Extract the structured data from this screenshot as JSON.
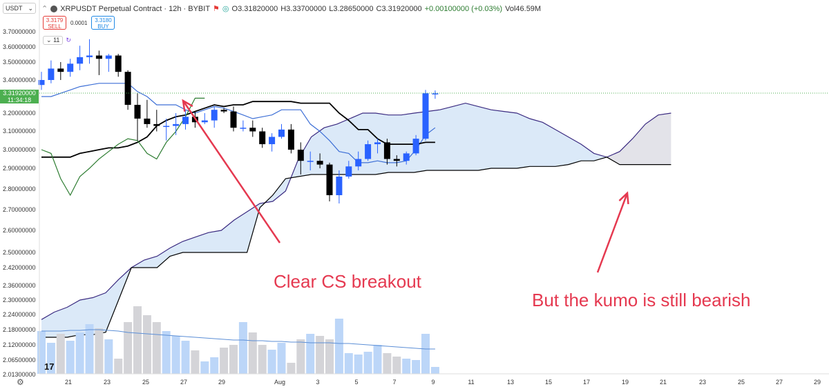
{
  "header": {
    "symbol_box": "USDT",
    "title": "XRPUSDT Perpetual Contract · 12h · BYBIT",
    "open": "O3.31820000",
    "high": "H3.33700000",
    "low": "L3.28650000",
    "close": "C3.31920000",
    "change": "+0.00100000 (+0.03%)",
    "volume": "Vol46.59M"
  },
  "trade": {
    "sell_price": "3.3179",
    "sell_label": "SELL",
    "spread": "0.0001",
    "buy_price": "3.3180",
    "buy_label": "BUY"
  },
  "indicator": {
    "count": "11"
  },
  "price_tag": {
    "price": "3.31920000",
    "countdown": "11:34:18"
  },
  "annotations": {
    "left": "Clear CS breakout",
    "right": "But the kumo is still bearish"
  },
  "colors": {
    "up": "#2962ff",
    "down": "#000000",
    "conversion": "#3d6fd6",
    "base": "#000000",
    "lagging": "#2e7d32",
    "span_a": "#3a2a80",
    "span_b": "#000000",
    "cloud_bull": "#dbe9f8",
    "cloud_bear": "#e3e3e9",
    "annotation": "#e53950",
    "vol_up": "#bcd6f8",
    "vol_down": "#d4d4d8"
  },
  "chart_data": {
    "type": "candlestick",
    "title": "XRPUSDT Perpetual Contract · 12h · BYBIT",
    "y_axis_labels": [
      "3.70000000",
      "3.60000000",
      "3.50000000",
      "3.40000000",
      "3.20000000",
      "3.10000000",
      "3.00000000",
      "2.90000000",
      "2.80000000",
      "2.70000000",
      "2.60000000",
      "2.50000000",
      "2.42000000",
      "2.36000000",
      "2.30000000",
      "2.24000000",
      "2.18000000",
      "2.12000000",
      "2.06500000",
      "2.01300000"
    ],
    "x_axis_labels": [
      "21",
      "23",
      "25",
      "27",
      "29",
      "Aug",
      "3",
      "5",
      "7",
      "9",
      "11",
      "13",
      "15",
      "17",
      "19",
      "21",
      "23",
      "25",
      "27",
      "29"
    ],
    "candles": [
      {
        "o": 3.37,
        "h": 3.45,
        "l": 3.34,
        "c": 3.4
      },
      {
        "o": 3.4,
        "h": 3.52,
        "l": 3.38,
        "c": 3.47
      },
      {
        "o": 3.47,
        "h": 3.51,
        "l": 3.4,
        "c": 3.45
      },
      {
        "o": 3.45,
        "h": 3.53,
        "l": 3.42,
        "c": 3.5
      },
      {
        "o": 3.5,
        "h": 3.61,
        "l": 3.46,
        "c": 3.54
      },
      {
        "o": 3.54,
        "h": 3.65,
        "l": 3.5,
        "c": 3.55
      },
      {
        "o": 3.55,
        "h": 3.58,
        "l": 3.43,
        "c": 3.53
      },
      {
        "o": 3.53,
        "h": 3.56,
        "l": 3.45,
        "c": 3.55
      },
      {
        "o": 3.55,
        "h": 3.56,
        "l": 3.42,
        "c": 3.45
      },
      {
        "o": 3.45,
        "h": 3.46,
        "l": 3.22,
        "c": 3.25
      },
      {
        "o": 3.25,
        "h": 3.32,
        "l": 3.05,
        "c": 3.17
      },
      {
        "o": 3.17,
        "h": 3.28,
        "l": 3.12,
        "c": 3.14
      },
      {
        "o": 3.14,
        "h": 3.22,
        "l": 3.1,
        "c": 3.13
      },
      {
        "o": 3.13,
        "h": 3.17,
        "l": 3.05,
        "c": 3.13
      },
      {
        "o": 3.13,
        "h": 3.2,
        "l": 3.08,
        "c": 3.14
      },
      {
        "o": 3.14,
        "h": 3.22,
        "l": 3.11,
        "c": 3.18
      },
      {
        "o": 3.18,
        "h": 3.21,
        "l": 3.12,
        "c": 3.15
      },
      {
        "o": 3.15,
        "h": 3.2,
        "l": 3.14,
        "c": 3.16
      },
      {
        "o": 3.16,
        "h": 3.24,
        "l": 3.12,
        "c": 3.22
      },
      {
        "o": 3.22,
        "h": 3.23,
        "l": 3.2,
        "c": 3.21
      },
      {
        "o": 3.21,
        "h": 3.24,
        "l": 3.1,
        "c": 3.12
      },
      {
        "o": 3.12,
        "h": 3.16,
        "l": 3.1,
        "c": 3.12
      },
      {
        "o": 3.12,
        "h": 3.16,
        "l": 3.07,
        "c": 3.1
      },
      {
        "o": 3.1,
        "h": 3.12,
        "l": 3.01,
        "c": 3.03
      },
      {
        "o": 3.03,
        "h": 3.09,
        "l": 2.99,
        "c": 3.07
      },
      {
        "o": 3.07,
        "h": 3.14,
        "l": 3.06,
        "c": 3.11
      },
      {
        "o": 3.11,
        "h": 3.14,
        "l": 2.98,
        "c": 3.0
      },
      {
        "o": 3.0,
        "h": 3.04,
        "l": 2.87,
        "c": 2.94
      },
      {
        "o": 2.94,
        "h": 2.99,
        "l": 2.89,
        "c": 2.94
      },
      {
        "o": 2.94,
        "h": 2.98,
        "l": 2.9,
        "c": 2.92
      },
      {
        "o": 2.92,
        "h": 2.93,
        "l": 2.74,
        "c": 2.77
      },
      {
        "o": 2.77,
        "h": 2.89,
        "l": 2.73,
        "c": 2.86
      },
      {
        "o": 2.86,
        "h": 2.94,
        "l": 2.85,
        "c": 2.91
      },
      {
        "o": 2.91,
        "h": 2.99,
        "l": 2.89,
        "c": 2.95
      },
      {
        "o": 2.95,
        "h": 3.05,
        "l": 2.94,
        "c": 3.03
      },
      {
        "o": 3.03,
        "h": 3.06,
        "l": 2.98,
        "c": 3.04
      },
      {
        "o": 3.04,
        "h": 3.06,
        "l": 2.92,
        "c": 2.95
      },
      {
        "o": 2.95,
        "h": 2.97,
        "l": 2.91,
        "c": 2.94
      },
      {
        "o": 2.94,
        "h": 2.99,
        "l": 2.92,
        "c": 2.98
      },
      {
        "o": 2.98,
        "h": 3.08,
        "l": 2.97,
        "c": 3.06
      },
      {
        "o": 3.06,
        "h": 3.34,
        "l": 3.05,
        "c": 3.32
      },
      {
        "o": 3.318,
        "h": 3.337,
        "l": 3.2865,
        "c": 3.3192
      }
    ],
    "volumes": [
      0.62,
      0.45,
      0.58,
      0.48,
      0.6,
      0.72,
      0.66,
      0.5,
      0.22,
      0.75,
      0.98,
      0.85,
      0.75,
      0.62,
      0.55,
      0.48,
      0.34,
      0.18,
      0.24,
      0.38,
      0.42,
      0.75,
      0.6,
      0.42,
      0.35,
      0.45,
      0.16,
      0.5,
      0.58,
      0.55,
      0.5,
      0.8,
      0.3,
      0.28,
      0.32,
      0.42,
      0.3,
      0.25,
      0.22,
      0.2,
      0.58,
      0.1
    ],
    "volume_ma": [
      0.62,
      0.62,
      0.62,
      0.63,
      0.63,
      0.64,
      0.64,
      0.63,
      0.62,
      0.6,
      0.59,
      0.58,
      0.57,
      0.56,
      0.55,
      0.54,
      0.53,
      0.52,
      0.51,
      0.5,
      0.49,
      0.49,
      0.48,
      0.48,
      0.47,
      0.47,
      0.46,
      0.46,
      0.45,
      0.45,
      0.45,
      0.44,
      0.44,
      0.43,
      0.42,
      0.41,
      0.4,
      0.39,
      0.38,
      0.37,
      0.36,
      0.36
    ],
    "conversion_line": [
      3.3,
      3.3,
      3.32,
      3.34,
      3.36,
      3.37,
      3.38,
      3.38,
      3.38,
      3.38,
      3.33,
      3.3,
      3.25,
      3.25,
      3.25,
      3.22,
      3.2,
      3.22,
      3.24,
      3.23,
      3.21,
      3.19,
      3.17,
      3.18,
      3.19,
      3.22,
      3.22,
      3.22,
      3.14,
      3.1,
      3.05,
      2.99,
      2.98,
      2.93,
      2.93,
      2.94,
      2.93,
      2.93,
      2.94,
      3.0,
      3.08,
      3.12
    ],
    "base_line": [
      2.96,
      2.96,
      2.96,
      2.96,
      2.98,
      2.99,
      3.0,
      3.01,
      3.01,
      3.02,
      3.04,
      3.07,
      3.13,
      3.16,
      3.18,
      3.19,
      3.21,
      3.23,
      3.25,
      3.24,
      3.25,
      3.25,
      3.27,
      3.27,
      3.27,
      3.27,
      3.27,
      3.26,
      3.26,
      3.26,
      3.26,
      3.2,
      3.16,
      3.11,
      3.11,
      3.06,
      3.03,
      3.03,
      3.03,
      3.03,
      3.04,
      3.04
    ],
    "lagging_span": [
      3.0,
      2.98,
      2.85,
      2.77,
      2.86,
      2.9,
      2.95,
      2.99,
      3.03,
      3.06,
      3.05,
      2.98,
      2.95,
      3.04,
      3.1,
      3.18,
      3.29,
      3.29
    ],
    "span_a": [
      2.22,
      2.25,
      2.27,
      2.3,
      2.31,
      2.33,
      2.38,
      2.42,
      2.46,
      2.48,
      2.52,
      2.55,
      2.57,
      2.59,
      2.6,
      2.65,
      2.69,
      2.73,
      2.74,
      2.79,
      2.95,
      3.07,
      3.12,
      3.14,
      3.17,
      3.2,
      3.2,
      3.19,
      3.19,
      3.2,
      3.21,
      3.22,
      3.24,
      3.26,
      3.24,
      3.22,
      3.21,
      3.2,
      3.17,
      3.15,
      3.11,
      3.07,
      3.03,
      2.98,
      2.96,
      2.99,
      3.06,
      3.14,
      3.19,
      3.2
    ],
    "span_b": [
      2.15,
      2.15,
      2.15,
      2.16,
      2.16,
      2.17,
      2.3,
      2.42,
      2.42,
      2.42,
      2.48,
      2.5,
      2.5,
      2.5,
      2.5,
      2.5,
      2.5,
      2.71,
      2.77,
      2.85,
      2.86,
      2.87,
      2.87,
      2.87,
      2.87,
      2.87,
      2.87,
      2.88,
      2.88,
      2.88,
      2.89,
      2.89,
      2.89,
      2.89,
      2.89,
      2.9,
      2.9,
      2.9,
      2.91,
      2.91,
      2.91,
      2.92,
      2.94,
      2.94,
      2.96,
      2.92,
      2.92,
      2.92,
      2.92,
      2.92
    ]
  }
}
